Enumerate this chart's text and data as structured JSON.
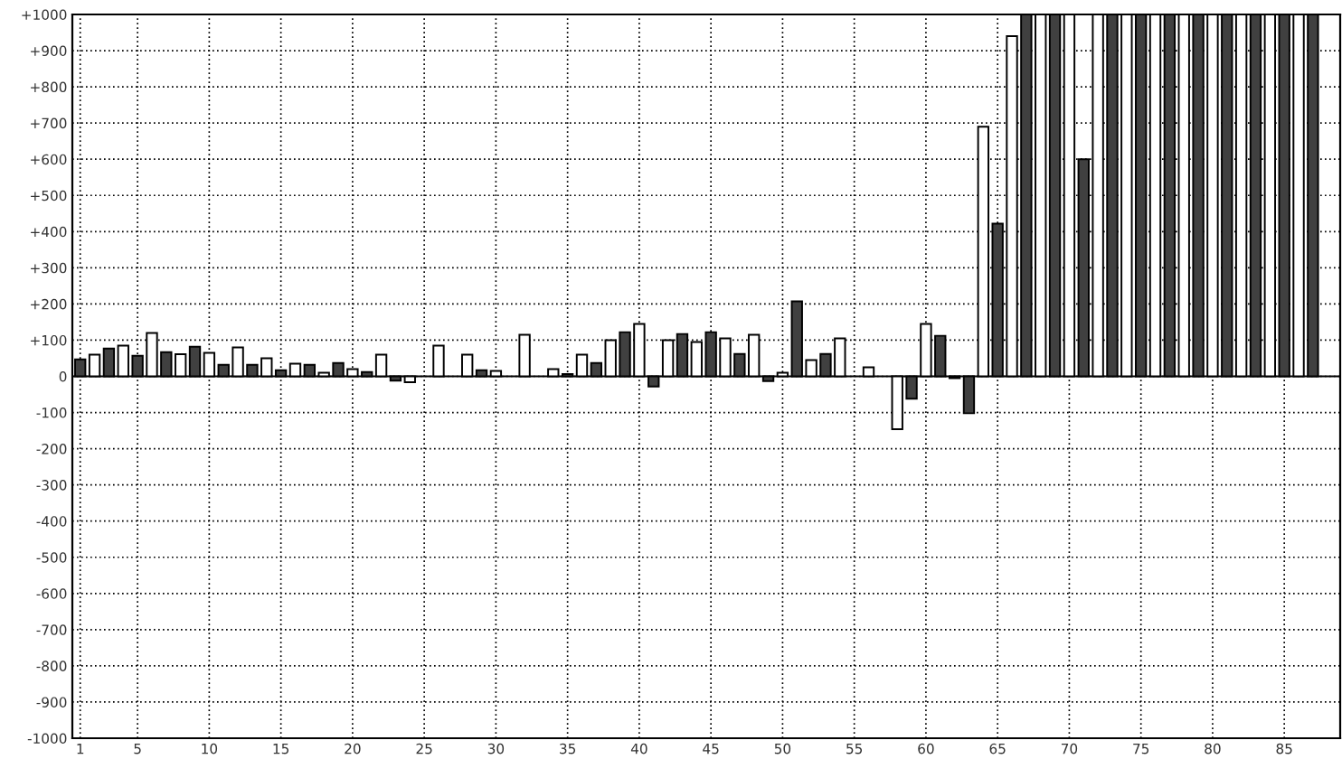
{
  "chart_data": {
    "type": "bar",
    "x": [
      1,
      2,
      3,
      4,
      5,
      6,
      7,
      8,
      9,
      10,
      11,
      12,
      13,
      14,
      15,
      16,
      17,
      18,
      19,
      20,
      21,
      22,
      23,
      24,
      25,
      26,
      27,
      28,
      29,
      30,
      31,
      32,
      33,
      34,
      35,
      36,
      37,
      38,
      39,
      40,
      41,
      42,
      43,
      44,
      45,
      46,
      47,
      48,
      49,
      50,
      51,
      52,
      53,
      54,
      55,
      56,
      57,
      58,
      59,
      60,
      61,
      62,
      63,
      64,
      65,
      66,
      67,
      68,
      69,
      70,
      71,
      72,
      73,
      74,
      75,
      76,
      77,
      78,
      79,
      80,
      81,
      82,
      83,
      84,
      85,
      86,
      87
    ],
    "values": [
      47,
      60,
      77,
      85,
      57,
      120,
      67,
      61,
      82,
      65,
      32,
      80,
      32,
      50,
      17,
      35,
      32,
      10,
      37,
      20,
      12,
      60,
      -12,
      -16,
      null,
      85,
      null,
      60,
      17,
      15,
      null,
      115,
      null,
      20,
      6,
      60,
      37,
      100,
      122,
      145,
      -28,
      100,
      117,
      95,
      122,
      105,
      62,
      115,
      -13,
      10,
      207,
      45,
      62,
      105,
      null,
      25,
      null,
      -146,
      -62,
      145,
      112,
      -5,
      -102,
      690,
      422,
      940,
      1000,
      1000,
      1000,
      1000,
      600,
      1000,
      1000,
      1000,
      1000,
      1000,
      1000,
      1000,
      1000,
      1000,
      1000,
      1000,
      1000,
      1000,
      1000,
      1000,
      1000
    ],
    "colors": [
      "#404040",
      "#ffffff",
      "#404040",
      "#ffffff",
      "#404040",
      "#ffffff",
      "#404040",
      "#ffffff",
      "#404040",
      "#ffffff",
      "#404040",
      "#ffffff",
      "#404040",
      "#ffffff",
      "#404040",
      "#ffffff",
      "#404040",
      "#ffffff",
      "#404040",
      "#ffffff",
      "#404040",
      "#ffffff",
      "#404040",
      "#ffffff",
      "#404040",
      "#ffffff",
      "#404040",
      "#ffffff",
      "#404040",
      "#ffffff",
      "#404040",
      "#ffffff",
      "#404040",
      "#ffffff",
      "#404040",
      "#ffffff",
      "#404040",
      "#ffffff",
      "#404040",
      "#ffffff",
      "#404040",
      "#ffffff",
      "#404040",
      "#ffffff",
      "#404040",
      "#ffffff",
      "#404040",
      "#ffffff",
      "#404040",
      "#ffffff",
      "#404040",
      "#ffffff",
      "#404040",
      "#ffffff",
      "#404040",
      "#ffffff",
      "#404040",
      "#ffffff",
      "#404040",
      "#ffffff",
      "#404040",
      "#ffffff",
      "#404040",
      "#ffffff",
      "#404040",
      "#ffffff",
      "#404040",
      "#ffffff",
      "#404040",
      "#ffffff",
      "#404040",
      "#ffffff",
      "#404040",
      "#ffffff",
      "#404040",
      "#ffffff",
      "#404040",
      "#ffffff",
      "#404040",
      "#ffffff",
      "#404040",
      "#ffffff",
      "#404040",
      "#ffffff",
      "#404040",
      "#ffffff",
      "#404040"
    ],
    "xlim": [
      0.45,
      88.9
    ],
    "xticks": [
      1,
      5,
      10,
      15,
      20,
      25,
      30,
      35,
      40,
      45,
      50,
      55,
      60,
      65,
      70,
      75,
      80,
      85
    ],
    "ylim": [
      -1000,
      1000
    ],
    "yticks": [
      {
        "value": -1000,
        "label": "-1000"
      },
      {
        "value": -900,
        "label": "-900"
      },
      {
        "value": -800,
        "label": "-800"
      },
      {
        "value": -700,
        "label": "-700"
      },
      {
        "value": -600,
        "label": "-600"
      },
      {
        "value": -500,
        "label": "-500"
      },
      {
        "value": -400,
        "label": "-400"
      },
      {
        "value": -300,
        "label": "-300"
      },
      {
        "value": -200,
        "label": "-200"
      },
      {
        "value": -100,
        "label": "-100"
      },
      0,
      {
        "value": 100,
        "label": "+100"
      },
      {
        "value": 200,
        "label": "+200"
      },
      {
        "value": 300,
        "label": "+300"
      },
      {
        "value": 400,
        "label": "+400"
      },
      {
        "value": 500,
        "label": "+500"
      },
      {
        "value": 600,
        "label": "+600"
      },
      {
        "value": 700,
        "label": "+700"
      },
      {
        "value": 800,
        "label": "+800"
      },
      {
        "value": 900,
        "label": "+900"
      },
      {
        "value": 1000,
        "label": "+1000"
      }
    ],
    "grid": true
  }
}
